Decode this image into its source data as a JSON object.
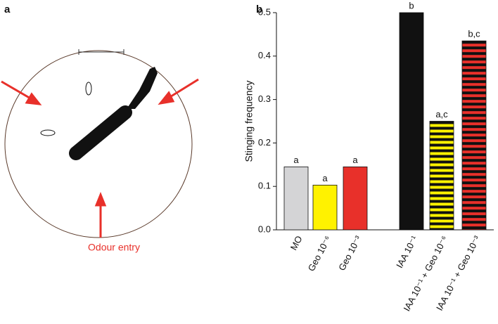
{
  "panels": {
    "a": "a",
    "b": "b"
  },
  "diagram": {
    "annotation": "Odour entry"
  },
  "chart_data": {
    "type": "bar",
    "ylabel": "Stinging frequency",
    "categories": [
      "MO",
      "Geo 10⁻⁶",
      "Geo 10⁻³",
      "IAA 10⁻¹",
      "IAA 10⁻¹ + Geo 10⁻⁶",
      "IAA 10⁻¹ + Geo 10⁻³"
    ],
    "values": [
      0.145,
      0.103,
      0.145,
      0.5,
      0.25,
      0.435
    ],
    "annotations": [
      "a",
      "a",
      "a",
      "b",
      "a,c",
      "b,c"
    ],
    "colors": [
      "#d4d4d6",
      "#fff200",
      "#e8302a",
      "#111111",
      "#fff200",
      "#e8302a"
    ],
    "striped": [
      false,
      false,
      false,
      false,
      true,
      true
    ],
    "stripe_color": "#111111",
    "ylim": [
      0,
      0.5
    ],
    "yticks": [
      {
        "value": 0,
        "label": "0.0"
      },
      0.1,
      0.2,
      0.3,
      0.4,
      0.5
    ],
    "grid": false
  }
}
